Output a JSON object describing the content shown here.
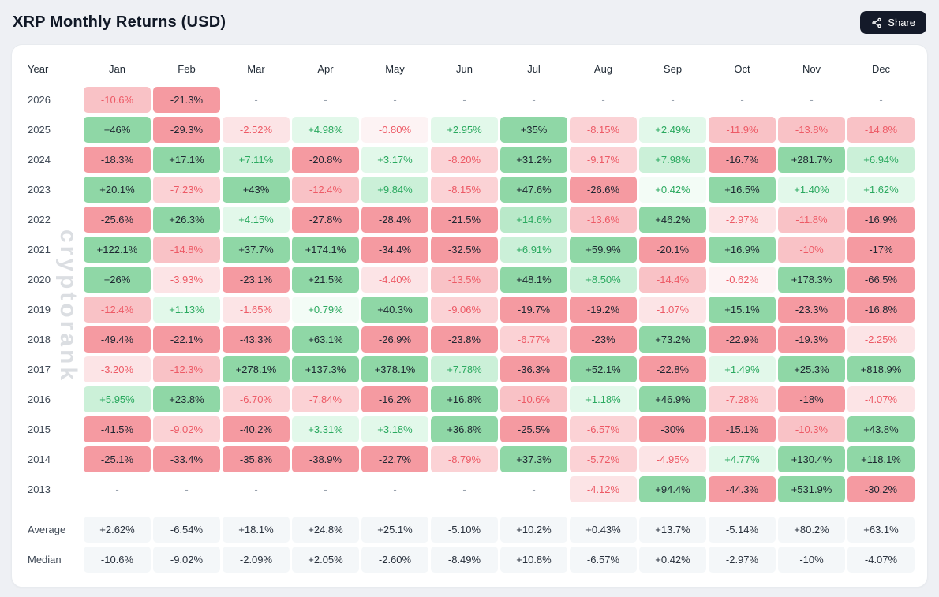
{
  "page": {
    "share_label": "Share",
    "watermark": "cryptorank"
  },
  "chart_data": {
    "type": "heatmap",
    "title": "XRP Monthly Returns (USD)",
    "year_column_label": "Year",
    "columns": [
      "Jan",
      "Feb",
      "Mar",
      "Apr",
      "May",
      "Jun",
      "Jul",
      "Aug",
      "Sep",
      "Oct",
      "Nov",
      "Dec"
    ],
    "rows": [
      {
        "year": "2026",
        "values": [
          "-10.6%",
          "-21.3%",
          "-",
          "-",
          "-",
          "-",
          "-",
          "-",
          "-",
          "-",
          "-",
          "-"
        ]
      },
      {
        "year": "2025",
        "values": [
          "+46%",
          "-29.3%",
          "-2.52%",
          "+4.98%",
          "-0.80%",
          "+2.95%",
          "+35%",
          "-8.15%",
          "+2.49%",
          "-11.9%",
          "-13.8%",
          "-14.8%"
        ]
      },
      {
        "year": "2024",
        "values": [
          "-18.3%",
          "+17.1%",
          "+7.11%",
          "-20.8%",
          "+3.17%",
          "-8.20%",
          "+31.2%",
          "-9.17%",
          "+7.98%",
          "-16.7%",
          "+281.7%",
          "+6.94%"
        ]
      },
      {
        "year": "2023",
        "values": [
          "+20.1%",
          "-7.23%",
          "+43%",
          "-12.4%",
          "+9.84%",
          "-8.15%",
          "+47.6%",
          "-26.6%",
          "+0.42%",
          "+16.5%",
          "+1.40%",
          "+1.62%"
        ]
      },
      {
        "year": "2022",
        "values": [
          "-25.6%",
          "+26.3%",
          "+4.15%",
          "-27.8%",
          "-28.4%",
          "-21.5%",
          "+14.6%",
          "-13.6%",
          "+46.2%",
          "-2.97%",
          "-11.8%",
          "-16.9%"
        ]
      },
      {
        "year": "2021",
        "values": [
          "+122.1%",
          "-14.8%",
          "+37.7%",
          "+174.1%",
          "-34.4%",
          "-32.5%",
          "+6.91%",
          "+59.9%",
          "-20.1%",
          "+16.9%",
          "-10%",
          "-17%"
        ]
      },
      {
        "year": "2020",
        "values": [
          "+26%",
          "-3.93%",
          "-23.1%",
          "+21.5%",
          "-4.40%",
          "-13.5%",
          "+48.1%",
          "+8.50%",
          "-14.4%",
          "-0.62%",
          "+178.3%",
          "-66.5%"
        ]
      },
      {
        "year": "2019",
        "values": [
          "-12.4%",
          "+1.13%",
          "-1.65%",
          "+0.79%",
          "+40.3%",
          "-9.06%",
          "-19.7%",
          "-19.2%",
          "-1.07%",
          "+15.1%",
          "-23.3%",
          "-16.8%"
        ]
      },
      {
        "year": "2018",
        "values": [
          "-49.4%",
          "-22.1%",
          "-43.3%",
          "+63.1%",
          "-26.9%",
          "-23.8%",
          "-6.77%",
          "-23%",
          "+73.2%",
          "-22.9%",
          "-19.3%",
          "-2.25%"
        ]
      },
      {
        "year": "2017",
        "values": [
          "-3.20%",
          "-12.3%",
          "+278.1%",
          "+137.3%",
          "+378.1%",
          "+7.78%",
          "-36.3%",
          "+52.1%",
          "-22.8%",
          "+1.49%",
          "+25.3%",
          "+818.9%"
        ]
      },
      {
        "year": "2016",
        "values": [
          "+5.95%",
          "+23.8%",
          "-6.70%",
          "-7.84%",
          "-16.2%",
          "+16.8%",
          "-10.6%",
          "+1.18%",
          "+46.9%",
          "-7.28%",
          "-18%",
          "-4.07%"
        ]
      },
      {
        "year": "2015",
        "values": [
          "-41.5%",
          "-9.02%",
          "-40.2%",
          "+3.31%",
          "+3.18%",
          "+36.8%",
          "-25.5%",
          "-6.57%",
          "-30%",
          "-15.1%",
          "-10.3%",
          "+43.8%"
        ]
      },
      {
        "year": "2014",
        "values": [
          "-25.1%",
          "-33.4%",
          "-35.8%",
          "-38.9%",
          "-22.7%",
          "-8.79%",
          "+37.3%",
          "-5.72%",
          "-4.95%",
          "+4.77%",
          "+130.4%",
          "+118.1%"
        ]
      },
      {
        "year": "2013",
        "values": [
          "-",
          "-",
          "-",
          "-",
          "-",
          "-",
          "-",
          "-4.12%",
          "+94.4%",
          "-44.3%",
          "+531.9%",
          "-30.2%"
        ]
      }
    ],
    "summary": [
      {
        "label": "Average",
        "values": [
          "+2.62%",
          "-6.54%",
          "+18.1%",
          "+24.8%",
          "+25.1%",
          "-5.10%",
          "+10.2%",
          "+0.43%",
          "+13.7%",
          "-5.14%",
          "+80.2%",
          "+63.1%"
        ]
      },
      {
        "label": "Median",
        "values": [
          "-10.6%",
          "-9.02%",
          "-2.09%",
          "+2.05%",
          "-2.60%",
          "-8.49%",
          "+10.8%",
          "-6.57%",
          "+0.42%",
          "-2.97%",
          "-10%",
          "-4.07%"
        ]
      }
    ],
    "legend": "green = positive monthly return, red = negative monthly return, intensity = magnitude"
  },
  "colors": {
    "page_bg": "#eef0f4",
    "card_bg": "#ffffff",
    "card_border": "#e8ebef",
    "title_text": "#101826",
    "accent_btn_bg": "#141a29",
    "accent_btn_text": "#ffffff",
    "header_text": "#212b36",
    "year_text": "#404a57",
    "empty_text": "#9aa3ae",
    "pos_strong_bg": "#8fd7a6",
    "pos_med2_bg": "#b9e9c9",
    "pos_mid_bg": "#cbf0d8",
    "pos_light_bg": "#e2f8ea",
    "pos_faint_bg": "#f3fcf6",
    "neg_strong_bg": "#f59aa1",
    "neg_med2_bg": "#f9c2c6",
    "neg_mid_bg": "#fbd2d5",
    "neg_light_bg": "#fce4e6",
    "neg_faint_bg": "#fdf3f4",
    "pos_text": "#2aa95f",
    "neg_text": "#ed5a66",
    "strong_text": "#1e2631",
    "summary_bg": "#f4f7f9",
    "summary_text": "#29313d",
    "watermark_text": "rgba(145,155,168,0.33)"
  }
}
